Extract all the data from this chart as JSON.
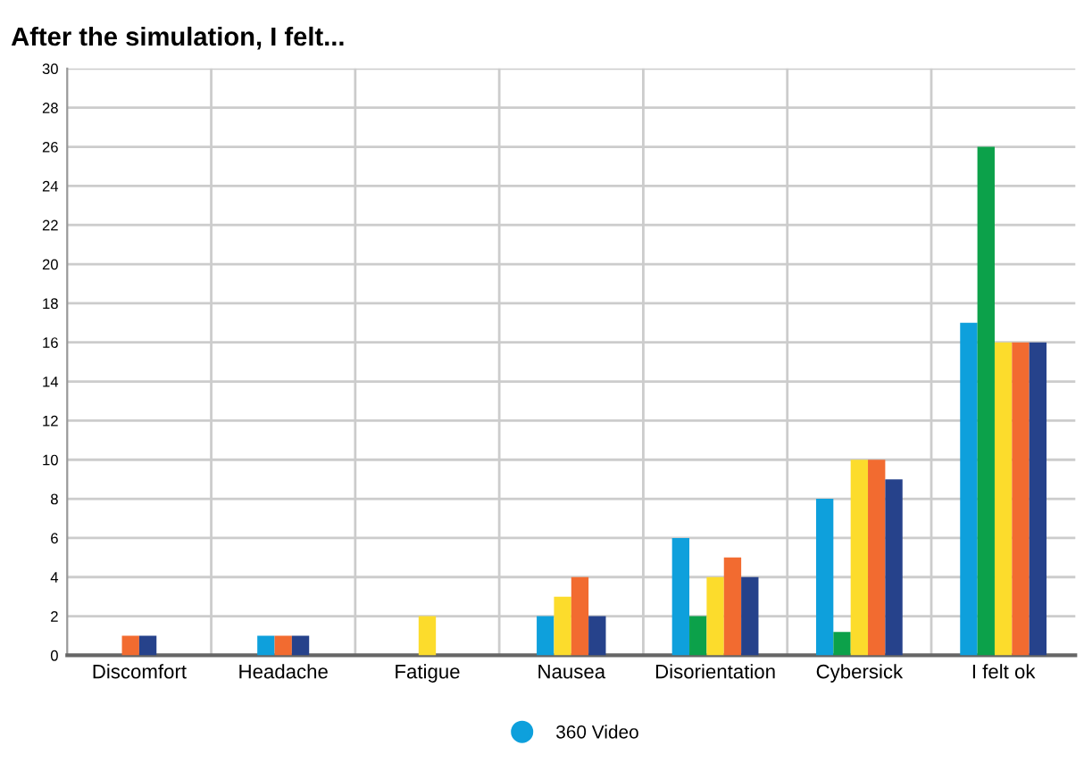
{
  "chart_data": {
    "type": "bar",
    "title": "After the simulation, I felt...",
    "categories": [
      "Discomfort",
      "Headache",
      "Fatigue",
      "Nausea",
      "Disorientation",
      "Cybersick",
      "I felt ok"
    ],
    "series": [
      {
        "name": "360 Video",
        "color": "#0ea0dc",
        "values": [
          null,
          1,
          null,
          2,
          6,
          8,
          17
        ]
      },
      {
        "color": "#0ca14a",
        "values": [
          null,
          null,
          null,
          null,
          2,
          1.2,
          26
        ]
      },
      {
        "color": "#fcdc2c",
        "values": [
          null,
          null,
          2,
          3,
          4,
          10,
          16
        ]
      },
      {
        "color": "#f26b30",
        "values": [
          1,
          1,
          null,
          4,
          5,
          10,
          16
        ]
      },
      {
        "color": "#26428b",
        "values": [
          1,
          1,
          null,
          2,
          4,
          9,
          16
        ]
      }
    ],
    "ylim": [
      0,
      30
    ],
    "yticks": [
      0,
      2,
      4,
      6,
      8,
      10,
      12,
      14,
      16,
      18,
      20,
      22,
      24,
      26,
      28,
      30
    ],
    "grid": true,
    "legend": "bottom"
  }
}
